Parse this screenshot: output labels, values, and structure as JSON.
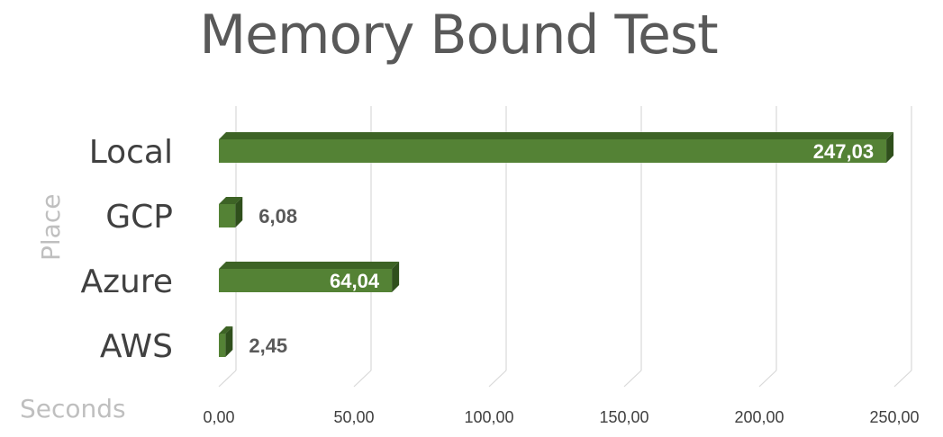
{
  "chart_data": {
    "type": "bar",
    "orientation": "horizontal",
    "title": "Memory Bound Test",
    "categories": [
      "Local",
      "GCP",
      "Azure",
      "AWS"
    ],
    "values": [
      247.03,
      6.08,
      64.04,
      2.45
    ],
    "value_labels": [
      "247,03",
      "6,08",
      "64,04",
      "2,45"
    ],
    "xlabel": "Seconds",
    "ylabel": "Place",
    "xlim": [
      0,
      250
    ],
    "x_ticks": [
      0,
      50,
      100,
      150,
      200,
      250
    ],
    "x_tick_labels": [
      "0,00",
      "50,00",
      "100,00",
      "150,00",
      "200,00",
      "250,00"
    ],
    "grid": true,
    "bar_color": "#548235",
    "legend": "none"
  }
}
